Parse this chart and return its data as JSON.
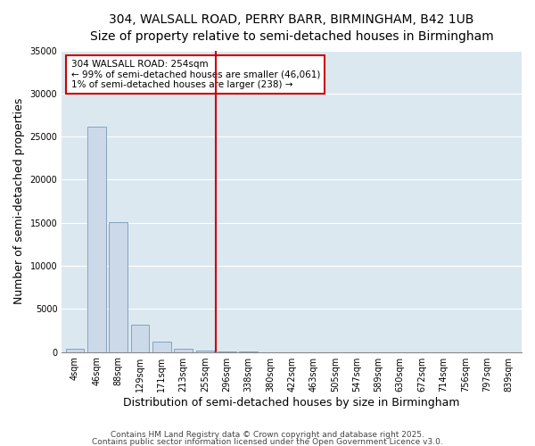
{
  "title1": "304, WALSALL ROAD, PERRY BARR, BIRMINGHAM, B42 1UB",
  "title2": "Size of property relative to semi-detached houses in Birmingham",
  "xlabel": "Distribution of semi-detached houses by size in Birmingham",
  "ylabel": "Number of semi-detached properties",
  "categories": [
    "4sqm",
    "46sqm",
    "88sqm",
    "129sqm",
    "171sqm",
    "213sqm",
    "255sqm",
    "296sqm",
    "338sqm",
    "380sqm",
    "422sqm",
    "463sqm",
    "505sqm",
    "547sqm",
    "589sqm",
    "630sqm",
    "672sqm",
    "714sqm",
    "756sqm",
    "797sqm",
    "839sqm"
  ],
  "values": [
    400,
    26200,
    15100,
    3200,
    1200,
    420,
    210,
    95,
    25,
    8,
    4,
    2,
    1,
    1,
    0,
    0,
    0,
    0,
    0,
    0,
    0
  ],
  "bar_color": "#ccd9e8",
  "bar_edge_color": "#7799bb",
  "red_line_x": 6.5,
  "red_line_color": "#cc0000",
  "annotation_line1": "304 WALSALL ROAD: 254sqm",
  "annotation_line2": "← 99% of semi-detached houses are smaller (46,061)",
  "annotation_line3": "1% of semi-detached houses are larger (238) →",
  "annotation_box_color": "#ffffff",
  "annotation_box_edge_color": "#cc0000",
  "ylim": [
    0,
    35000
  ],
  "yticks": [
    0,
    5000,
    10000,
    15000,
    20000,
    25000,
    30000,
    35000
  ],
  "bg_color": "#dce8f0",
  "footer1": "Contains HM Land Registry data © Crown copyright and database right 2025.",
  "footer2": "Contains public sector information licensed under the Open Government Licence v3.0.",
  "title_fontsize": 10,
  "subtitle_fontsize": 9,
  "axis_label_fontsize": 9,
  "tick_fontsize": 7,
  "annotation_fontsize": 7.5,
  "footer_fontsize": 6.5
}
